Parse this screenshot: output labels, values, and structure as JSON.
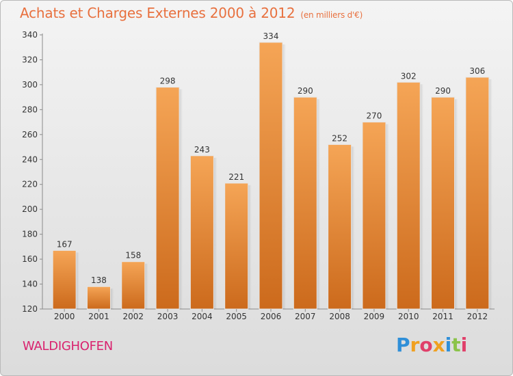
{
  "chart_data": {
    "type": "bar",
    "title": "Achats et Charges Externes 2000 à 2012",
    "subtitle": "(en milliers d'€)",
    "categories": [
      "2000",
      "2001",
      "2002",
      "2003",
      "2004",
      "2005",
      "2006",
      "2007",
      "2008",
      "2009",
      "2010",
      "2011",
      "2012"
    ],
    "values": [
      167,
      138,
      158,
      298,
      243,
      221,
      334,
      290,
      252,
      270,
      302,
      290,
      306
    ],
    "ylim": [
      120,
      340
    ],
    "yticks": [
      120,
      140,
      160,
      180,
      200,
      220,
      240,
      260,
      280,
      300,
      320,
      340
    ],
    "xlabel": "",
    "ylabel": "",
    "grid": false,
    "bar_color_light": "#f5a556",
    "bar_color_dark": "#cc6a1c"
  },
  "location": "WALDIGHOFEN",
  "logo": {
    "text": "Proxiti",
    "letters": [
      "P",
      "r",
      "o",
      "x",
      "i",
      "t",
      "i"
    ],
    "colors": [
      "#2f8fd8",
      "#f0a020",
      "#e0406a",
      "#f0a020",
      "#2f8fd8",
      "#8bc34a",
      "#e0406a"
    ]
  }
}
